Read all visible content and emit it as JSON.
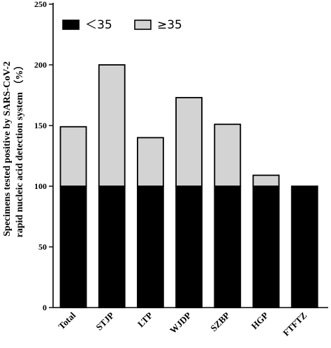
{
  "chart_data": {
    "type": "bar",
    "stacked": true,
    "title": "",
    "xlabel": "",
    "ylabel_lines": [
      "Specimens tested positive by SARS-CoV-2",
      "rapid nucleic acid detection system （%）"
    ],
    "categories": [
      "Total",
      "STJP",
      "LTP",
      "WJDP",
      "SZBP",
      "HGP",
      "FTFTZ"
    ],
    "series": [
      {
        "name": "＜35",
        "color": "#000000",
        "values": [
          100,
          100,
          100,
          100,
          100,
          100,
          100
        ]
      },
      {
        "name": "≥35",
        "color": "#d3d3d3",
        "values": [
          49,
          100,
          40,
          73,
          51,
          9,
          0
        ]
      }
    ],
    "ylim": [
      0,
      250
    ],
    "yticks": [
      "0",
      "50",
      "100",
      "150",
      "200",
      "250"
    ],
    "grid": false,
    "legend_position": "top-left"
  }
}
